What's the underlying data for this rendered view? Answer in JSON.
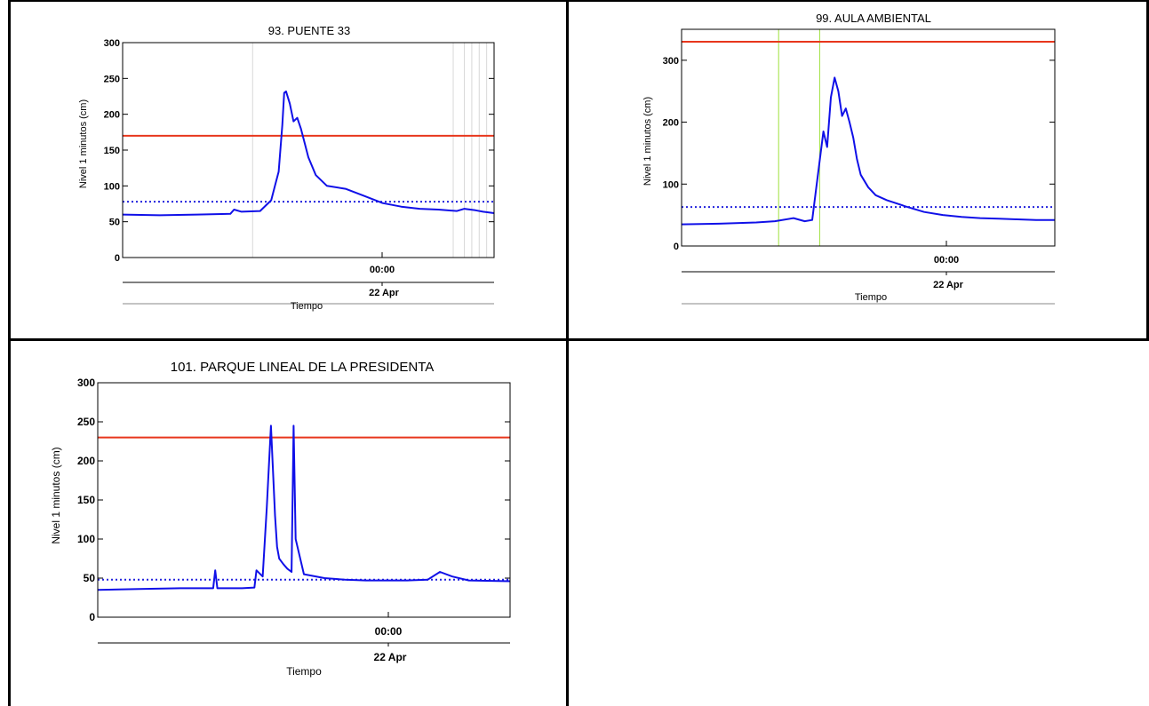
{
  "chart_data": [
    {
      "type": "line",
      "title": "93. PUENTE 33",
      "ylabel": "Nivel 1 minutos (cm)",
      "xlabel": "Tiempo",
      "x_tick_time": "00:00",
      "x_tick_date": "22 Apr",
      "ylim": [
        0,
        300
      ],
      "yticks": [
        0,
        50,
        100,
        150,
        200,
        250,
        300
      ],
      "threshold_red": 170,
      "threshold_blue": 78,
      "colors": {
        "series": "#1010e8",
        "red": "#e8361c",
        "blue": "#2222dd",
        "marker": "#d8d8d8"
      },
      "series": [
        {
          "x": [
            0,
            0.1,
            0.2,
            0.29,
            0.3,
            0.32,
            0.37,
            0.4,
            0.41,
            0.42,
            0.43,
            0.435,
            0.44,
            0.45,
            0.46,
            0.47,
            0.48,
            0.49,
            0.5,
            0.52,
            0.55,
            0.6,
            0.65,
            0.7,
            0.75,
            0.8,
            0.85,
            0.9,
            0.92,
            0.95,
            0.97,
            1.0
          ],
          "y": [
            60,
            59,
            60,
            61,
            67,
            64,
            65,
            80,
            100,
            120,
            185,
            230,
            232,
            215,
            190,
            195,
            180,
            160,
            140,
            115,
            100,
            96,
            86,
            76,
            71,
            68,
            67,
            65,
            68,
            66,
            64,
            62
          ]
        }
      ],
      "markers_x": [
        0.35,
        0.89,
        0.92,
        0.94,
        0.96,
        0.98
      ]
    },
    {
      "type": "line",
      "title": "99. AULA AMBIENTAL",
      "ylabel": "Nivel 1 minutos (cm)",
      "xlabel": "Tiempo",
      "x_tick_time": "00:00",
      "x_tick_date": "22 Apr",
      "ylim": [
        0,
        350
      ],
      "yticks": [
        0,
        100,
        200,
        300
      ],
      "threshold_red": 330,
      "threshold_blue": 63,
      "colors": {
        "series": "#1010e8",
        "red": "#e8361c",
        "blue": "#2222dd",
        "marker": "#9ee03c"
      },
      "series": [
        {
          "x": [
            0,
            0.1,
            0.2,
            0.25,
            0.3,
            0.33,
            0.35,
            0.36,
            0.38,
            0.39,
            0.4,
            0.41,
            0.42,
            0.43,
            0.44,
            0.45,
            0.46,
            0.47,
            0.48,
            0.5,
            0.52,
            0.55,
            0.6,
            0.65,
            0.7,
            0.75,
            0.8,
            0.85,
            0.9,
            0.95,
            1.0
          ],
          "y": [
            35,
            36,
            38,
            40,
            45,
            40,
            42,
            90,
            185,
            160,
            240,
            272,
            250,
            210,
            222,
            200,
            175,
            140,
            115,
            95,
            82,
            74,
            64,
            55,
            50,
            47,
            45,
            44,
            43,
            42,
            42
          ]
        }
      ],
      "markers_x": [
        0.26,
        0.37
      ]
    },
    {
      "type": "line",
      "title": "101. PARQUE LINEAL DE LA PRESIDENTA",
      "ylabel": "Nivel 1 minutos (cm)",
      "xlabel": "Tiempo",
      "x_tick_time": "00:00",
      "x_tick_date": "22 Apr",
      "ylim": [
        0,
        300
      ],
      "yticks": [
        0,
        50,
        100,
        150,
        200,
        250,
        300
      ],
      "threshold_red": 230,
      "threshold_blue": 48,
      "colors": {
        "series": "#1010e8",
        "red": "#e8361c",
        "blue": "#2222dd",
        "marker": "#d8d8d8"
      },
      "series": [
        {
          "x": [
            0,
            0.1,
            0.2,
            0.28,
            0.285,
            0.29,
            0.35,
            0.38,
            0.385,
            0.4,
            0.41,
            0.42,
            0.43,
            0.435,
            0.44,
            0.45,
            0.46,
            0.47,
            0.475,
            0.48,
            0.5,
            0.55,
            0.6,
            0.65,
            0.7,
            0.75,
            0.8,
            0.83,
            0.86,
            0.9,
            1.0
          ],
          "y": [
            35,
            36,
            37,
            37,
            60,
            37,
            37,
            38,
            60,
            52,
            140,
            245,
            130,
            90,
            75,
            68,
            62,
            58,
            245,
            100,
            55,
            50,
            48,
            47,
            47,
            47,
            48,
            58,
            52,
            47,
            46
          ]
        }
      ],
      "markers_x": []
    }
  ]
}
